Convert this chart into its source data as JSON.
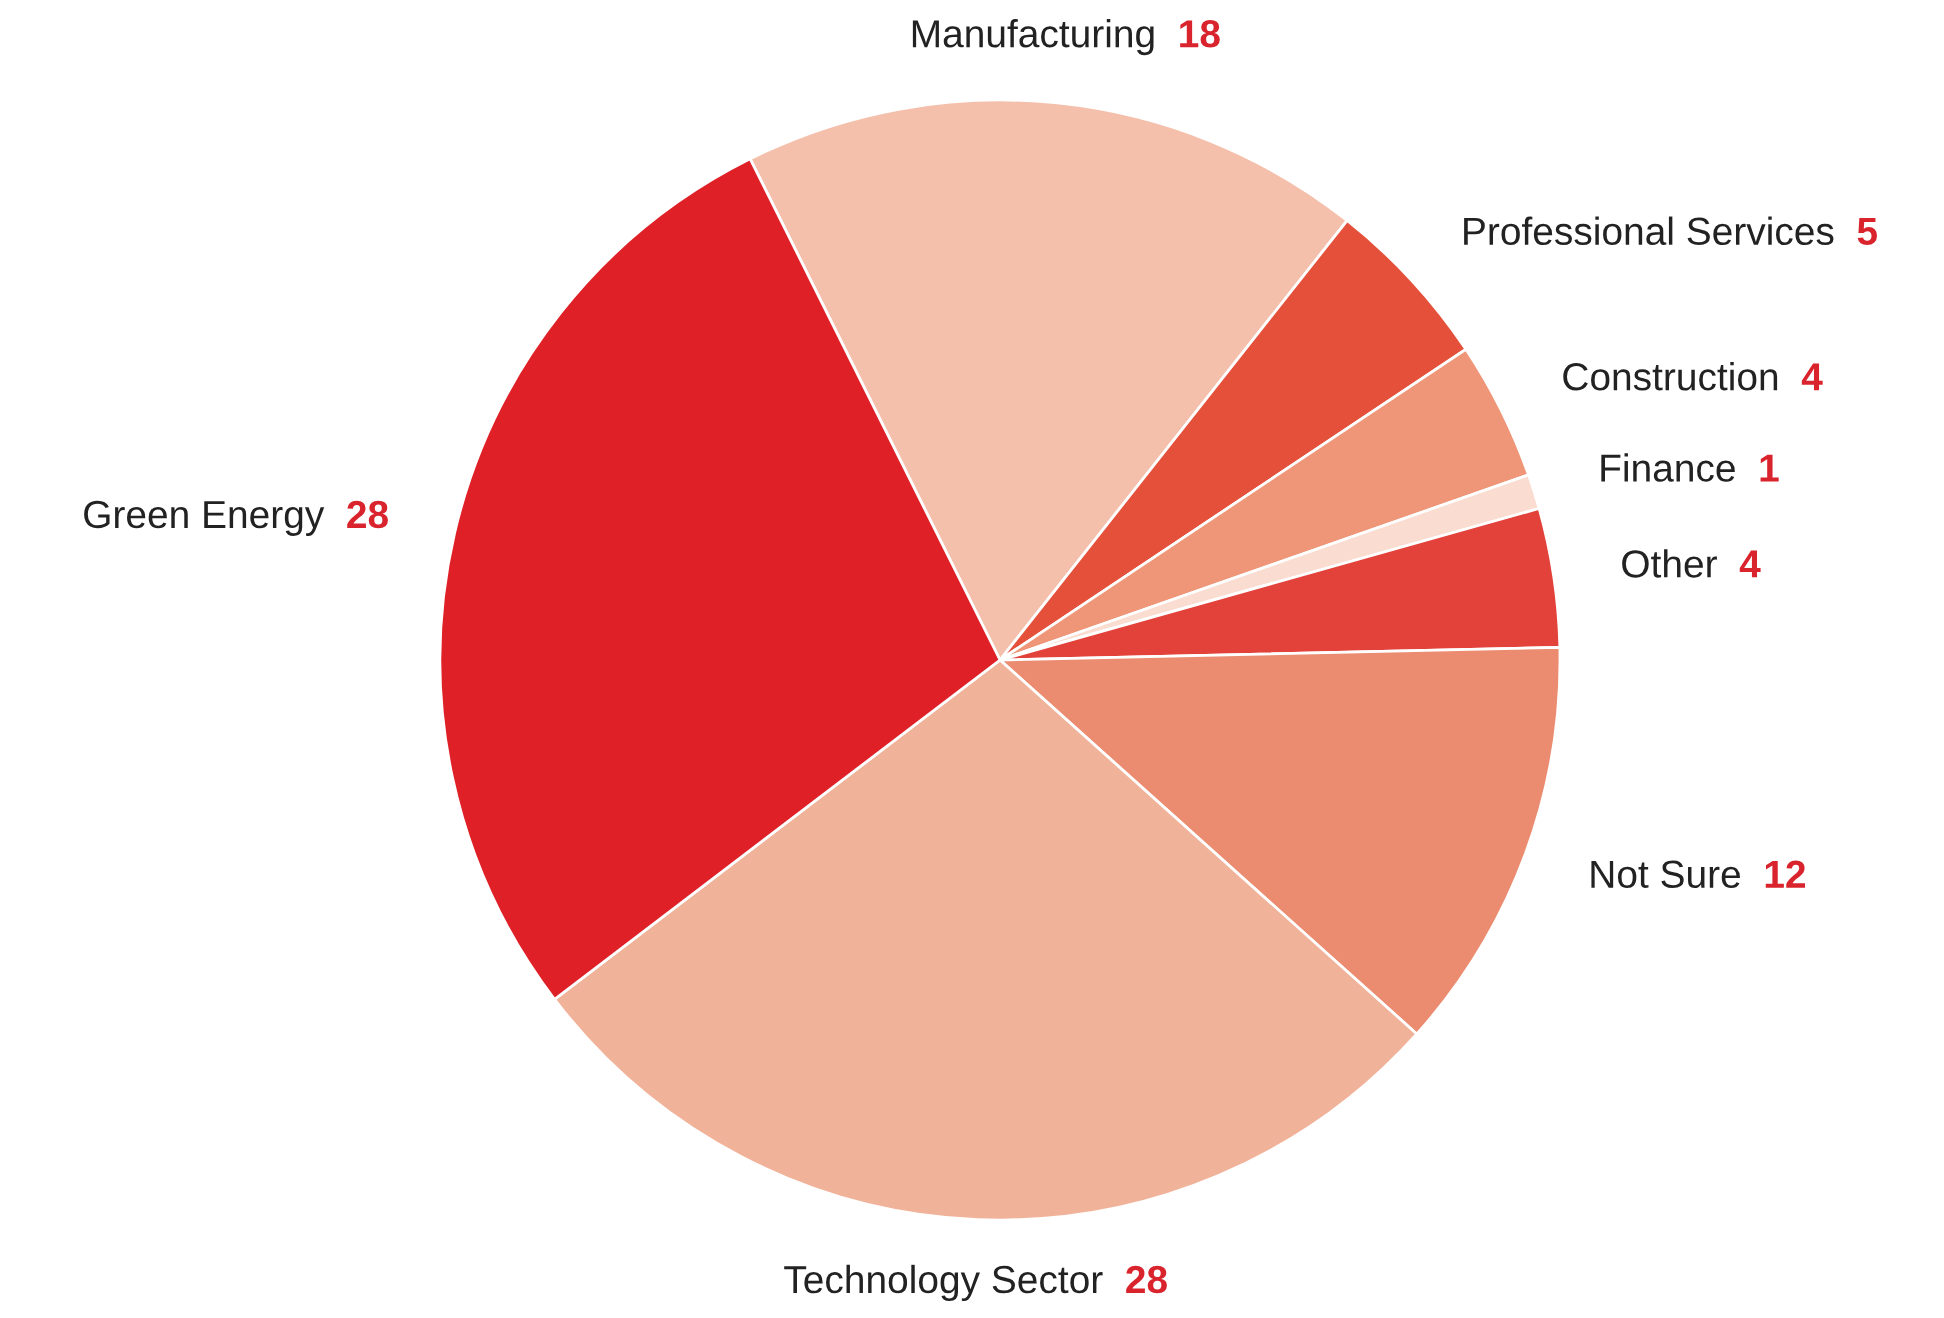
{
  "chart_data": {
    "type": "pie",
    "categories": [
      "Manufacturing",
      "Professional Services",
      "Construction",
      "Finance",
      "Other",
      "Not Sure",
      "Technology Sector",
      "Green Energy"
    ],
    "values": [
      18,
      5,
      4,
      1,
      4,
      12,
      28,
      28
    ],
    "colors": [
      "#f4c0ac",
      "#e4503a",
      "#ef9678",
      "#fadcd0",
      "#e2423a",
      "#eb8c70",
      "#f1b29a",
      "#df2027"
    ],
    "data_labels": true
  }
}
